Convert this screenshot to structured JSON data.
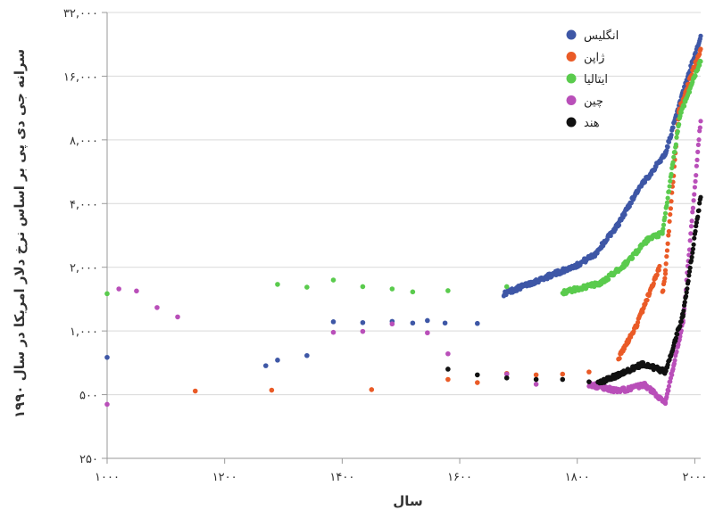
{
  "chart_data": {
    "type": "scatter",
    "title": "",
    "xlabel": "سال",
    "ylabel": "سرانه جی دی پی بر اساس نرخ دلار امریکا در سال ۱۹۹۰",
    "x_ticks": [
      {
        "value": 1000,
        "label": "۱۰۰۰"
      },
      {
        "value": 1200,
        "label": "۱۲۰۰"
      },
      {
        "value": 1400,
        "label": "۱۴۰۰"
      },
      {
        "value": 1600,
        "label": "۱۶۰۰"
      },
      {
        "value": 1800,
        "label": "۱۸۰۰"
      },
      {
        "value": 2000,
        "label": "۲۰۰۰"
      }
    ],
    "y_ticks": [
      {
        "value": 250,
        "label": "۲۵۰"
      },
      {
        "value": 500,
        "label": "۵۰۰"
      },
      {
        "value": 1000,
        "label": "۱,۰۰۰"
      },
      {
        "value": 2000,
        "label": "۲,۰۰۰"
      },
      {
        "value": 4000,
        "label": "۴,۰۰۰"
      },
      {
        "value": 8000,
        "label": "۸,۰۰۰"
      },
      {
        "value": 16000,
        "label": "۱۶,۰۰۰"
      },
      {
        "value": 32000,
        "label": "۳۲,۰۰۰"
      }
    ],
    "xlim": [
      1000,
      2010
    ],
    "ylim": [
      250,
      32000
    ],
    "y_scale": "log2",
    "grid": "horizontal",
    "legend_position": "top-right",
    "series": [
      {
        "name": "انگلیس",
        "color": "#3e57a6",
        "points": [
          [
            1000,
            750
          ],
          [
            1270,
            685
          ],
          [
            1290,
            728
          ],
          [
            1340,
            765
          ],
          [
            1385,
            1105
          ],
          [
            1435,
            1095
          ],
          [
            1485,
            1110
          ],
          [
            1520,
            1090
          ],
          [
            1545,
            1120
          ],
          [
            1575,
            1090
          ],
          [
            1630,
            1085
          ]
        ],
        "segments": [
          {
            "x_start": 1675,
            "x_end": 1800,
            "y_start": 1500,
            "y_end": 2050
          },
          {
            "x_start": 1800,
            "x_end": 1830,
            "y_start": 2050,
            "y_end": 2300
          },
          {
            "x_start": 1830,
            "x_end": 1870,
            "y_start": 2300,
            "y_end": 3200
          },
          {
            "x_start": 1870,
            "x_end": 1900,
            "y_start": 3200,
            "y_end": 4500
          },
          {
            "x_start": 1900,
            "x_end": 1950,
            "y_start": 4500,
            "y_end": 6900
          },
          {
            "x_start": 1950,
            "x_end": 1975,
            "y_start": 6900,
            "y_end": 12000
          },
          {
            "x_start": 1975,
            "x_end": 1990,
            "y_start": 12000,
            "y_end": 16500
          },
          {
            "x_start": 1990,
            "x_end": 2010,
            "y_start": 16500,
            "y_end": 24500
          }
        ]
      },
      {
        "name": "ژاپن",
        "color": "#ea5b27",
        "points": [
          [
            1150,
            520
          ],
          [
            1280,
            525
          ],
          [
            1450,
            528
          ],
          [
            1580,
            590
          ],
          [
            1630,
            570
          ],
          [
            1680,
            630
          ],
          [
            1730,
            620
          ],
          [
            1775,
            625
          ],
          [
            1820,
            640
          ]
        ],
        "segments": [
          {
            "x_start": 1870,
            "x_end": 1900,
            "y_start": 740,
            "y_end": 1050
          },
          {
            "x_start": 1900,
            "x_end": 1940,
            "y_start": 1050,
            "y_end": 2000
          },
          {
            "x_start": 1945,
            "x_end": 1950,
            "y_start": 1500,
            "y_end": 1900
          },
          {
            "x_start": 1950,
            "x_end": 1973,
            "y_start": 1900,
            "y_end": 11000
          },
          {
            "x_start": 1973,
            "x_end": 2010,
            "y_start": 11000,
            "y_end": 21500
          }
        ]
      },
      {
        "name": "ایتالیا",
        "color": "#5acb4d",
        "points": [
          [
            1000,
            1500
          ],
          [
            1290,
            1660
          ],
          [
            1340,
            1610
          ],
          [
            1385,
            1740
          ],
          [
            1435,
            1620
          ],
          [
            1485,
            1580
          ],
          [
            1520,
            1530
          ],
          [
            1580,
            1550
          ],
          [
            1680,
            1620
          ]
        ],
        "segments": [
          {
            "x_start": 1775,
            "x_end": 1840,
            "y_start": 1520,
            "y_end": 1680
          },
          {
            "x_start": 1840,
            "x_end": 1880,
            "y_start": 1680,
            "y_end": 2050
          },
          {
            "x_start": 1880,
            "x_end": 1920,
            "y_start": 2050,
            "y_end": 2700
          },
          {
            "x_start": 1920,
            "x_end": 1945,
            "y_start": 2700,
            "y_end": 2900
          },
          {
            "x_start": 1945,
            "x_end": 1975,
            "y_start": 2900,
            "y_end": 10500
          },
          {
            "x_start": 1975,
            "x_end": 2010,
            "y_start": 10500,
            "y_end": 19000
          }
        ]
      },
      {
        "name": "چین",
        "color": "#b94fb9",
        "points": [
          [
            1000,
            450
          ],
          [
            1020,
            1580
          ],
          [
            1050,
            1545
          ],
          [
            1085,
            1290
          ],
          [
            1120,
            1165
          ],
          [
            1385,
            985
          ],
          [
            1435,
            995
          ],
          [
            1485,
            1080
          ],
          [
            1545,
            980
          ],
          [
            1580,
            780
          ],
          [
            1680,
            625
          ],
          [
            1730,
            560
          ]
        ],
        "segments": [
          {
            "x_start": 1820,
            "x_end": 1870,
            "y_start": 560,
            "y_end": 520
          },
          {
            "x_start": 1870,
            "x_end": 1915,
            "y_start": 520,
            "y_end": 555
          },
          {
            "x_start": 1915,
            "x_end": 1950,
            "y_start": 555,
            "y_end": 460
          },
          {
            "x_start": 1950,
            "x_end": 1980,
            "y_start": 460,
            "y_end": 1100
          },
          {
            "x_start": 1980,
            "x_end": 2010,
            "y_start": 1100,
            "y_end": 10000
          }
        ]
      },
      {
        "name": "هند",
        "color": "#111111",
        "points": [
          [
            1580,
            660
          ],
          [
            1630,
            620
          ],
          [
            1680,
            600
          ],
          [
            1730,
            590
          ],
          [
            1775,
            590
          ],
          [
            1820,
            575
          ]
        ],
        "segments": [
          {
            "x_start": 1835,
            "x_end": 1870,
            "y_start": 565,
            "y_end": 620
          },
          {
            "x_start": 1870,
            "x_end": 1913,
            "y_start": 620,
            "y_end": 700
          },
          {
            "x_start": 1913,
            "x_end": 1950,
            "y_start": 700,
            "y_end": 640
          },
          {
            "x_start": 1950,
            "x_end": 1980,
            "y_start": 640,
            "y_end": 1200
          },
          {
            "x_start": 1980,
            "x_end": 2010,
            "y_start": 1200,
            "y_end": 4300
          }
        ]
      }
    ]
  }
}
